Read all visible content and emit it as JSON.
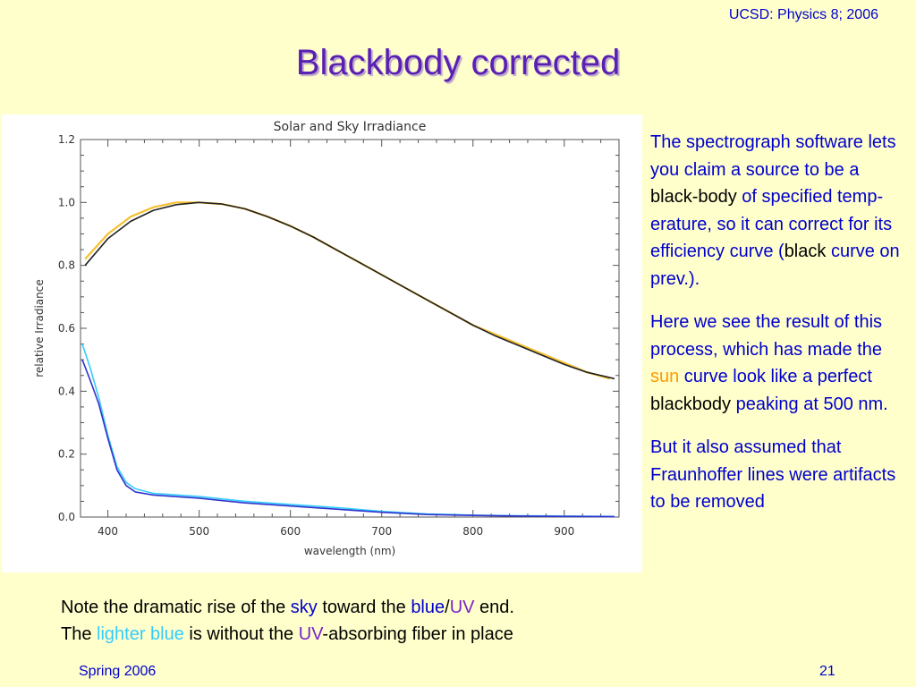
{
  "header": {
    "course": "UCSD: Physics 8; 2006"
  },
  "title": "Blackbody corrected",
  "side_text": {
    "p1": {
      "s1": "The spectrograph software lets you claim a source to be a ",
      "k1": "black-body",
      "s2": " of specified temp-erature, so it can correct for its efficiency curve (",
      "k2": "black",
      "s3": " curve on prev.)."
    },
    "p2": {
      "s1": "Here we see the result of this process, which has made the ",
      "sun": "sun",
      "s2": " curve look like a perfect ",
      "k1": "blackbody",
      "s3": " peaking at 500 nm."
    },
    "p3": "But it also assumed that Fraunhoffer lines were artifacts to be removed"
  },
  "note": {
    "l1a": "Note the dramatic rise of the ",
    "sky": "sky",
    "l1b": " toward the ",
    "blue": "blue",
    "slash": "/",
    "uv": "UV",
    "l1c": " end.",
    "l2a": "The ",
    "lighter_blue": "lighter blue",
    "l2b": " is without the ",
    "uv2": "UV",
    "l2c": "-absorbing fiber in place"
  },
  "footer": {
    "left": "Spring 2006",
    "right": "21"
  },
  "chart_data": {
    "type": "line",
    "title": "Solar and Sky Irradiance",
    "xlabel": "wavelength (nm)",
    "ylabel": "relative Irradiance",
    "xlim": [
      370,
      960
    ],
    "ylim": [
      0,
      1.2
    ],
    "xticks": [
      400,
      500,
      600,
      700,
      800,
      900
    ],
    "yticks": [
      0.0,
      0.2,
      0.4,
      0.6,
      0.8,
      1.0,
      1.2
    ],
    "ytick_labels": [
      "0.0",
      "0.2",
      "0.4",
      "0.6",
      "0.8",
      "1.0",
      "1.2"
    ],
    "colors": {
      "sun": "#f5c030",
      "fit": "#222222",
      "sky_dark": "#3333cc",
      "sky_light": "#33ccff"
    },
    "series": [
      {
        "key": "sun",
        "x": [
          375,
          400,
          425,
          450,
          475,
          500,
          525,
          550,
          575,
          600,
          625,
          650,
          675,
          700,
          725,
          750,
          775,
          800,
          825,
          850,
          875,
          900,
          925,
          950
        ],
        "y": [
          0.82,
          0.9,
          0.955,
          0.985,
          1.0,
          1.0,
          0.995,
          0.98,
          0.955,
          0.925,
          0.89,
          0.85,
          0.81,
          0.77,
          0.73,
          0.69,
          0.65,
          0.61,
          0.58,
          0.55,
          0.52,
          0.49,
          0.46,
          0.44
        ]
      },
      {
        "key": "fit",
        "x": [
          375,
          400,
          425,
          450,
          475,
          500,
          525,
          550,
          575,
          600,
          625,
          650,
          675,
          700,
          725,
          750,
          775,
          800,
          825,
          850,
          875,
          900,
          925,
          955
        ],
        "y": [
          0.8,
          0.885,
          0.94,
          0.975,
          0.993,
          1.0,
          0.995,
          0.98,
          0.955,
          0.925,
          0.89,
          0.85,
          0.81,
          0.77,
          0.73,
          0.69,
          0.65,
          0.61,
          0.575,
          0.545,
          0.515,
          0.485,
          0.46,
          0.44
        ]
      },
      {
        "key": "sky_dark",
        "x": [
          372,
          380,
          390,
          400,
          410,
          420,
          430,
          450,
          500,
          550,
          600,
          650,
          700,
          750,
          800,
          850,
          900,
          955
        ],
        "y": [
          0.5,
          0.44,
          0.36,
          0.25,
          0.15,
          0.1,
          0.08,
          0.07,
          0.06,
          0.045,
          0.035,
          0.025,
          0.015,
          0.008,
          0.005,
          0.003,
          0.002,
          0.001
        ]
      },
      {
        "key": "sky_light",
        "x": [
          372,
          380,
          390,
          400,
          410,
          420,
          430,
          450,
          500,
          550,
          600,
          650,
          700,
          750,
          800,
          850,
          900,
          955
        ],
        "y": [
          0.55,
          0.48,
          0.38,
          0.26,
          0.16,
          0.11,
          0.09,
          0.075,
          0.065,
          0.05,
          0.04,
          0.03,
          0.018,
          0.01,
          0.006,
          0.004,
          0.003,
          0.002
        ]
      }
    ]
  }
}
